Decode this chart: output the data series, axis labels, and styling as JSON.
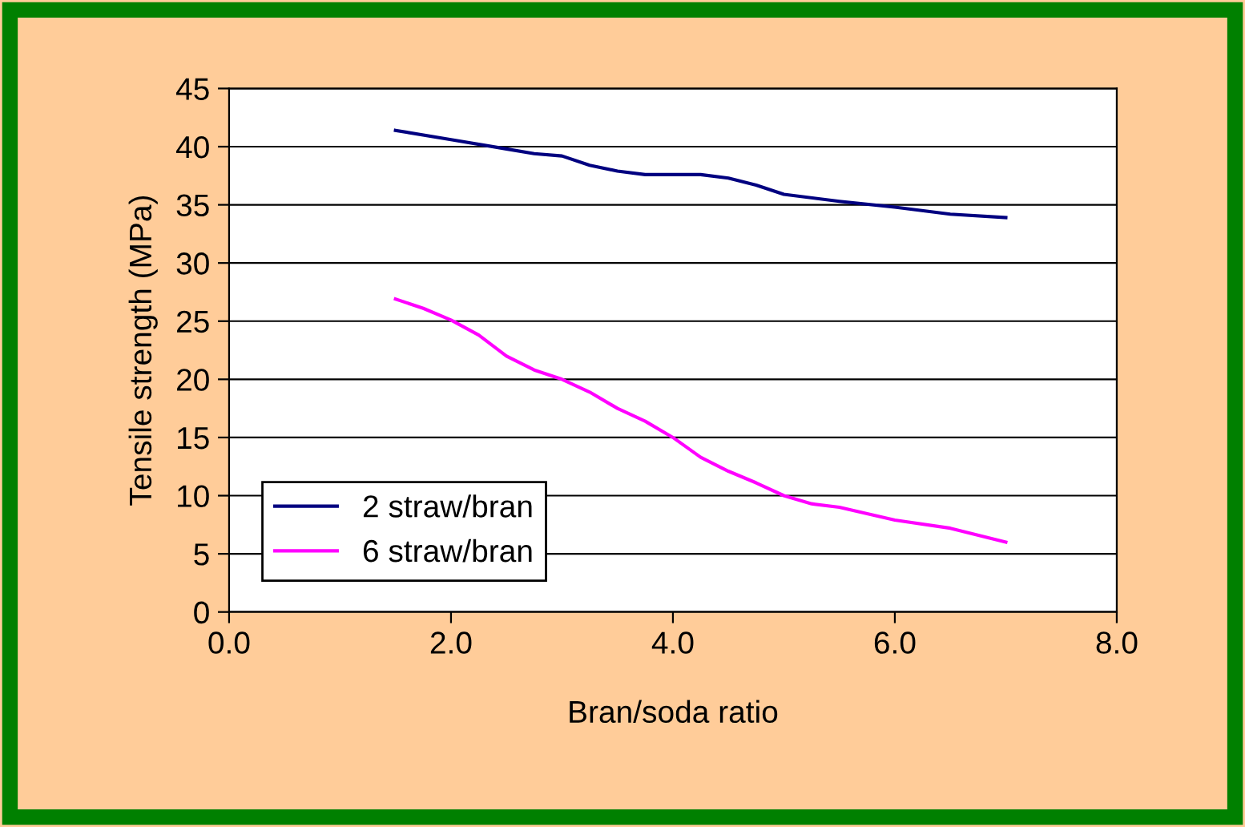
{
  "chart_data": {
    "type": "line",
    "xlabel": "Bran/soda ratio",
    "ylabel": "Tensile strength (MPa)",
    "xlim": [
      0,
      8
    ],
    "xticks": [
      {
        "value": 0,
        "label": "0.0"
      },
      {
        "value": 2,
        "label": "2.0"
      },
      {
        "value": 4,
        "label": "4.0"
      },
      {
        "value": 6,
        "label": "6.0"
      },
      {
        "value": 8,
        "label": "8.0"
      }
    ],
    "ylim": [
      0,
      45
    ],
    "yticks": [
      0,
      5,
      10,
      15,
      20,
      25,
      30,
      35,
      40,
      45
    ],
    "grid": "y",
    "legend": "bottom left",
    "marker": "none",
    "line_style": "solid",
    "series": [
      {
        "name": "2 straw/bran",
        "color": "#000080",
        "x": [
          1.5,
          2.0,
          2.5,
          2.75,
          3.0,
          3.25,
          3.5,
          3.75,
          4.25,
          4.5,
          4.75,
          5.0,
          5.5,
          6.0,
          6.5,
          7.0
        ],
        "values": [
          41.4,
          40.6,
          39.8,
          39.4,
          39.2,
          38.4,
          37.9,
          37.6,
          37.6,
          37.3,
          36.7,
          35.9,
          35.3,
          34.8,
          34.2,
          33.9
        ]
      },
      {
        "name": "6 straw/bran",
        "color": "#ff00ff",
        "x": [
          1.5,
          1.75,
          2.0,
          2.25,
          2.5,
          2.75,
          3.0,
          3.25,
          3.5,
          3.75,
          4.0,
          4.25,
          4.5,
          4.75,
          5.0,
          5.25,
          5.5,
          6.0,
          6.5,
          7.0
        ],
        "values": [
          26.9,
          26.1,
          25.1,
          23.8,
          22.0,
          20.8,
          20.0,
          18.9,
          17.5,
          16.4,
          15.0,
          13.3,
          12.1,
          11.1,
          10.0,
          9.3,
          9.0,
          7.9,
          7.2,
          6.0
        ]
      }
    ]
  }
}
